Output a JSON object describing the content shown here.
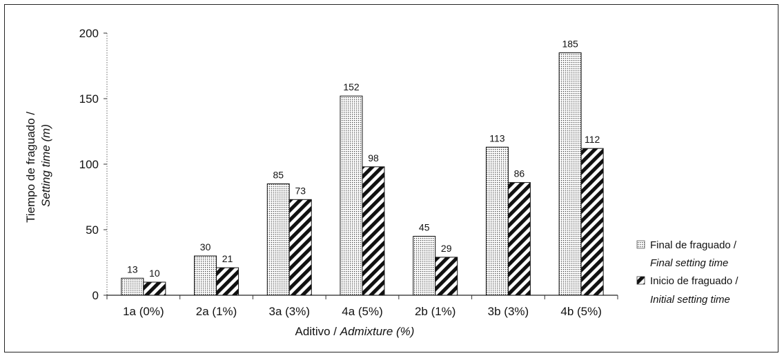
{
  "chart_data": {
    "type": "bar",
    "categories": [
      "1a (0%)",
      "2a (1%)",
      "3a (3%)",
      "4a (5%)",
      "2b (1%)",
      "3b (3%)",
      "4b (5%)"
    ],
    "series": [
      {
        "name": "Final de fraguado / Final setting time",
        "name_main": "Final de fraguado /",
        "name_italic": "Final setting time",
        "pattern": "dotted",
        "values": [
          13,
          30,
          85,
          152,
          45,
          113,
          185
        ]
      },
      {
        "name": "Inicio de fraguado / Initial setting time",
        "name_main": "Inicio de fraguado /",
        "name_italic": "Initial setting time",
        "pattern": "hatched",
        "values": [
          10,
          21,
          73,
          98,
          29,
          86,
          112
        ]
      }
    ],
    "xlabel": "Aditivo / Admixture (%)",
    "xlabel_main": "Aditivo / ",
    "xlabel_italic": "Admixture (%)",
    "ylabel": "Tiempo de fraguado / Setting time (m)",
    "ylabel_main": "Tiempo de fraguado /",
    "ylabel_italic": "Setting time (m)",
    "ylim": [
      0,
      200
    ],
    "yticks": [
      0,
      50,
      100,
      150,
      200
    ],
    "legend_position": "right",
    "grid": false
  }
}
